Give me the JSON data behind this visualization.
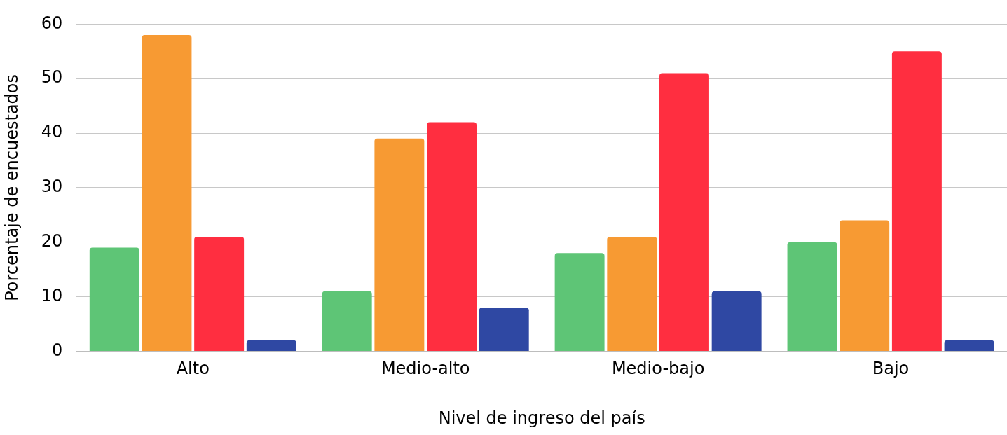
{
  "chart_data": {
    "type": "bar",
    "categories": [
      "Alto",
      "Medio-alto",
      "Medio-bajo",
      "Bajo"
    ],
    "series": [
      {
        "color": "#5ec576",
        "values": [
          19,
          11,
          18,
          20
        ]
      },
      {
        "color": "#f79a33",
        "values": [
          58,
          39,
          21,
          24
        ]
      },
      {
        "color": "#ff2e40",
        "values": [
          21,
          42,
          51,
          55
        ]
      },
      {
        "color": "#2f48a3",
        "values": [
          2,
          8,
          11,
          2
        ]
      }
    ],
    "xlabel": "Nivel de ingreso del país",
    "ylabel": "Porcentaje de encuestados",
    "ylim": [
      0,
      60
    ],
    "yticks": [
      0,
      10,
      20,
      30,
      40,
      50,
      60
    ],
    "grid": "y",
    "legend": false
  }
}
